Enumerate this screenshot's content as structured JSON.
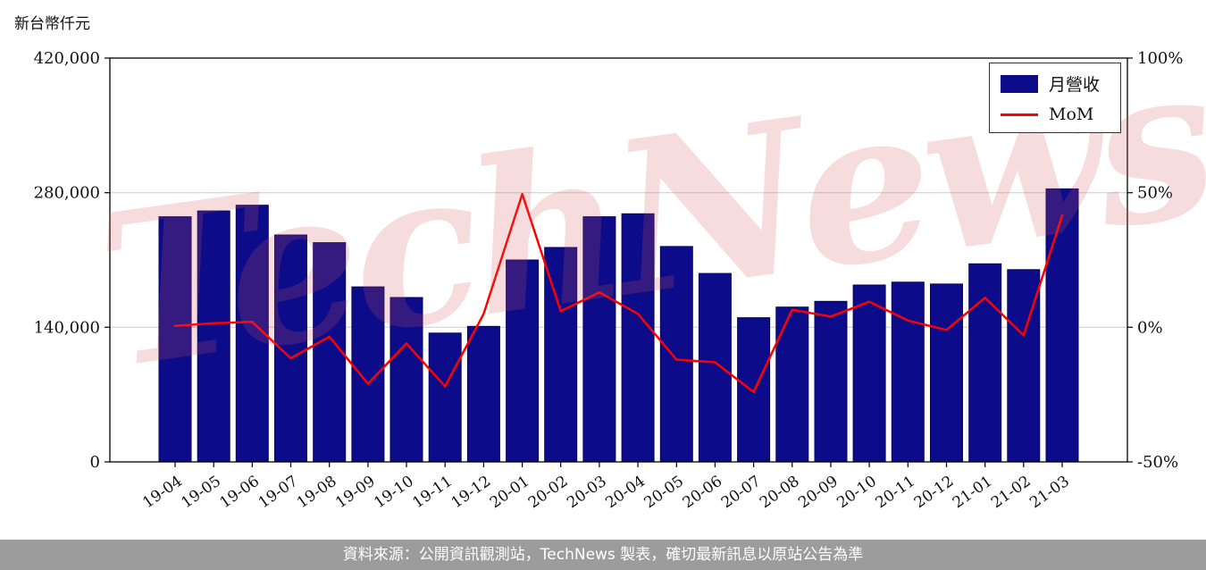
{
  "unit_label": "新台幣仟元",
  "watermark_text": "TechNews",
  "legend": {
    "revenue": "月營收",
    "mom": "MoM"
  },
  "footer": {
    "source_text": "資料來源：公開資訊觀測站，TechNews 製表，確切最新訊息以原站公告為準"
  },
  "colors": {
    "bar": "#0c0c8a",
    "line": "#ff0000",
    "grid": "#cccccc",
    "axis": "#000000",
    "watermark": "#d9535a",
    "footer_bg": "#9c9c9c",
    "footer_text": "#ffffff"
  },
  "chart_data": {
    "type": "bar",
    "categories": [
      "19-04",
      "19-05",
      "19-06",
      "19-07",
      "19-08",
      "19-09",
      "19-10",
      "19-11",
      "19-12",
      "20-01",
      "20-02",
      "20-03",
      "20-04",
      "20-05",
      "20-06",
      "20-07",
      "20-08",
      "20-09",
      "20-10",
      "20-11",
      "20-12",
      "21-01",
      "21-02",
      "21-03"
    ],
    "series": [
      {
        "name": "月營收",
        "type": "bar",
        "axis": "left",
        "values": [
          255000,
          261000,
          267000,
          236000,
          228000,
          182000,
          171000,
          134000,
          141000,
          210000,
          223000,
          255000,
          258000,
          224000,
          196000,
          150000,
          161000,
          167000,
          184000,
          187000,
          185000,
          206000,
          200000,
          284000
        ]
      },
      {
        "name": "MoM",
        "type": "line",
        "axis": "right",
        "values": [
          0.5,
          1.5,
          2,
          -11.5,
          -3.5,
          -21,
          -6,
          -22,
          5,
          49.5,
          6,
          13,
          5,
          -12,
          -13,
          -24,
          6.5,
          4,
          9.5,
          2.5,
          -1,
          11,
          -3,
          41.5
        ]
      }
    ],
    "left_axis": {
      "label": "新台幣仟元",
      "min": 0,
      "max": 420000,
      "ticks": [
        0,
        140000,
        280000,
        420000
      ]
    },
    "right_axis": {
      "unit": "%",
      "min": -50,
      "max": 100,
      "ticks": [
        -50,
        0,
        50,
        100
      ]
    },
    "grid": "horizontal",
    "legend_position": "top-right",
    "title": ""
  }
}
